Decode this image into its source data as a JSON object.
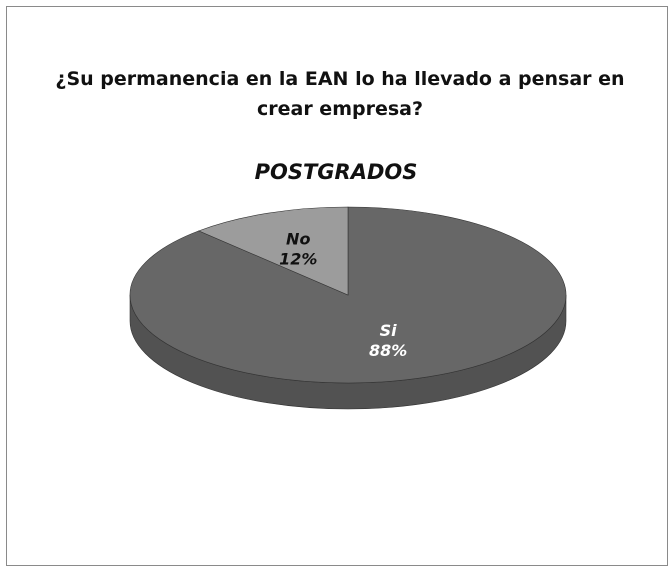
{
  "chart_data": {
    "type": "pie",
    "title": "¿Su permanencia en la EAN lo ha llevado a pensar en crear empresa?",
    "subtitle": "POSTGRADOS",
    "categories": [
      "Si",
      "No"
    ],
    "values": [
      88,
      12
    ],
    "value_labels": [
      "88%",
      "12%"
    ],
    "colors": [
      "#676767",
      "#9c9c9c"
    ],
    "three_d": true
  }
}
